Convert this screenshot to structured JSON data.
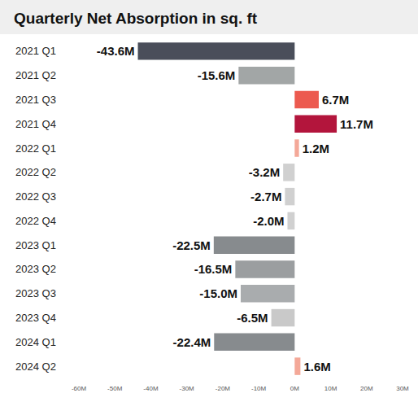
{
  "chart_data": {
    "type": "bar",
    "title": "Quarterly Net Absorption in sq. ft",
    "orientation": "horizontal",
    "categories": [
      "2021 Q1",
      "2021 Q2",
      "2021 Q3",
      "2021 Q4",
      "2022 Q1",
      "2022 Q2",
      "2022 Q3",
      "2022 Q4",
      "2023 Q1",
      "2023 Q2",
      "2023 Q3",
      "2023 Q4",
      "2024 Q1",
      "2024 Q2"
    ],
    "values": [
      -43.6,
      -15.6,
      6.7,
      11.7,
      1.2,
      -3.2,
      -2.7,
      -2.0,
      -22.5,
      -16.5,
      -15.0,
      -6.5,
      -22.4,
      1.6
    ],
    "value_labels": [
      "-43.6M",
      "-15.6M",
      "6.7M",
      "11.7M",
      "1.2M",
      "-3.2M",
      "-2.7M",
      "-2.0M",
      "-22.5M",
      "-16.5M",
      "-15.0M",
      "-6.5M",
      "-22.4M",
      "1.6M"
    ],
    "colors": [
      "#4a4e5a",
      "#a2a6a6",
      "#ec5a4f",
      "#b3153c",
      "#f4a898",
      "#d0d0d0",
      "#d0d0d0",
      "#d0d0d0",
      "#878b8e",
      "#9b9ea0",
      "#a9acae",
      "#c9c9c9",
      "#878b8e",
      "#f4a898"
    ],
    "xlim": [
      -60,
      30
    ],
    "xticks": [
      {
        "value": -60,
        "label": "-60M"
      },
      {
        "value": -50,
        "label": "-50M"
      },
      {
        "value": -40,
        "label": "-40M"
      },
      {
        "value": -30,
        "label": "-30M"
      },
      {
        "value": -20,
        "label": "-20M"
      },
      {
        "value": -10,
        "label": "-10M"
      },
      {
        "value": 0,
        "label": "0M"
      },
      {
        "value": 10,
        "label": "10M"
      },
      {
        "value": 20,
        "label": "20M"
      },
      {
        "value": 30,
        "label": "30M"
      }
    ],
    "data_labels": true,
    "grid": false
  }
}
